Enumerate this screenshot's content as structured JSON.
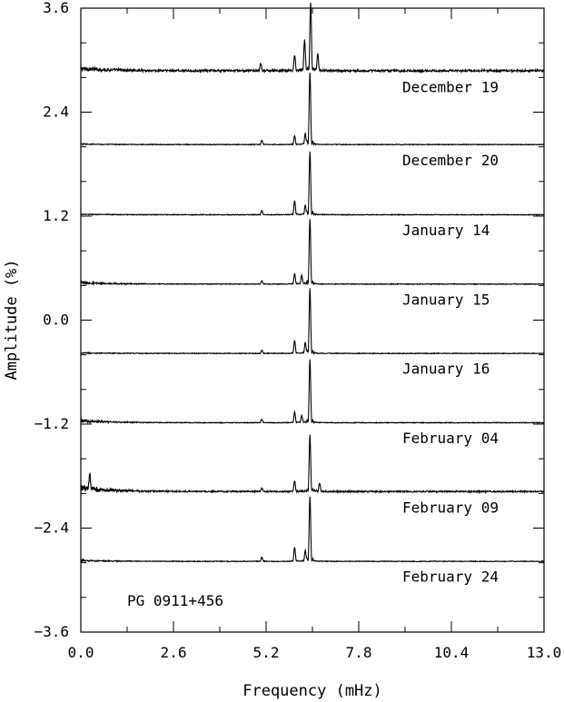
{
  "chart_data": {
    "type": "line",
    "title": "",
    "object_label": "PG 0911+456",
    "xlabel": "Frequency (mHz)",
    "ylabel": "Amplitude (%)",
    "xlim": [
      0.0,
      13.0
    ],
    "ylim": [
      -3.6,
      3.6
    ],
    "x_ticks": [
      0.0,
      2.6,
      5.2,
      7.8,
      10.4,
      13.0
    ],
    "x_tick_labels": [
      "0.0",
      "2.6",
      "5.2",
      "7.8",
      "10.4",
      "13.0"
    ],
    "y_ticks": [
      3.6,
      2.4,
      1.2,
      0.0,
      -1.2,
      -2.4,
      -3.6
    ],
    "y_tick_labels": [
      "3.6",
      "2.4",
      "1.2",
      "0.0",
      "−1.2",
      "−2.4",
      "−3.6"
    ],
    "y_minor_step": 0.4,
    "x_minor_step": 1.3,
    "grid": false,
    "legend": "none",
    "line_color": "#000000",
    "series": [
      {
        "name": "December 19",
        "baseline": 2.86,
        "noise": 0.03,
        "low_freq_noise": 0.05,
        "peaks": [
          {
            "x": 6.45,
            "amp": 0.79
          },
          {
            "x": 6.28,
            "amp": 0.35
          },
          {
            "x": 6.65,
            "amp": 0.2
          },
          {
            "x": 6.0,
            "amp": 0.18
          },
          {
            "x": 5.05,
            "amp": 0.08
          }
        ]
      },
      {
        "name": "December 20",
        "baseline": 2.02,
        "noise": 0.01,
        "low_freq_noise": 0.01,
        "peaks": [
          {
            "x": 6.43,
            "amp": 0.83
          },
          {
            "x": 6.3,
            "amp": 0.12
          },
          {
            "x": 6.0,
            "amp": 0.1
          },
          {
            "x": 5.08,
            "amp": 0.05
          }
        ]
      },
      {
        "name": "January 14",
        "baseline": 1.21,
        "noise": 0.01,
        "low_freq_noise": 0.01,
        "peaks": [
          {
            "x": 6.43,
            "amp": 0.73
          },
          {
            "x": 6.0,
            "amp": 0.16
          },
          {
            "x": 6.3,
            "amp": 0.1
          },
          {
            "x": 5.08,
            "amp": 0.05
          }
        ]
      },
      {
        "name": "January 15",
        "baseline": 0.41,
        "noise": 0.01,
        "low_freq_noise": 0.03,
        "peaks": [
          {
            "x": 6.43,
            "amp": 0.75
          },
          {
            "x": 6.0,
            "amp": 0.12
          },
          {
            "x": 6.2,
            "amp": 0.1
          },
          {
            "x": 5.08,
            "amp": 0.04
          }
        ]
      },
      {
        "name": "January 16",
        "baseline": -0.39,
        "noise": 0.01,
        "low_freq_noise": 0.01,
        "peaks": [
          {
            "x": 6.43,
            "amp": 0.75
          },
          {
            "x": 6.0,
            "amp": 0.15
          },
          {
            "x": 6.3,
            "amp": 0.12
          },
          {
            "x": 5.08,
            "amp": 0.04
          }
        ]
      },
      {
        "name": "February 04",
        "baseline": -1.19,
        "noise": 0.01,
        "low_freq_noise": 0.04,
        "peaks": [
          {
            "x": 6.43,
            "amp": 0.73
          },
          {
            "x": 6.0,
            "amp": 0.12
          },
          {
            "x": 6.2,
            "amp": 0.08
          },
          {
            "x": 5.08,
            "amp": 0.04
          }
        ]
      },
      {
        "name": "February 09",
        "baseline": -1.99,
        "noise": 0.02,
        "low_freq_noise": 0.08,
        "peaks": [
          {
            "x": 6.43,
            "amp": 0.65
          },
          {
            "x": 6.0,
            "amp": 0.12
          },
          {
            "x": 0.25,
            "amp": 0.17
          },
          {
            "x": 6.7,
            "amp": 0.1
          },
          {
            "x": 5.08,
            "amp": 0.04
          }
        ]
      },
      {
        "name": "February 24",
        "baseline": -2.79,
        "noise": 0.01,
        "low_freq_noise": 0.02,
        "peaks": [
          {
            "x": 6.43,
            "amp": 0.75
          },
          {
            "x": 6.0,
            "amp": 0.16
          },
          {
            "x": 6.3,
            "amp": 0.12
          },
          {
            "x": 5.08,
            "amp": 0.05
          }
        ]
      }
    ]
  }
}
